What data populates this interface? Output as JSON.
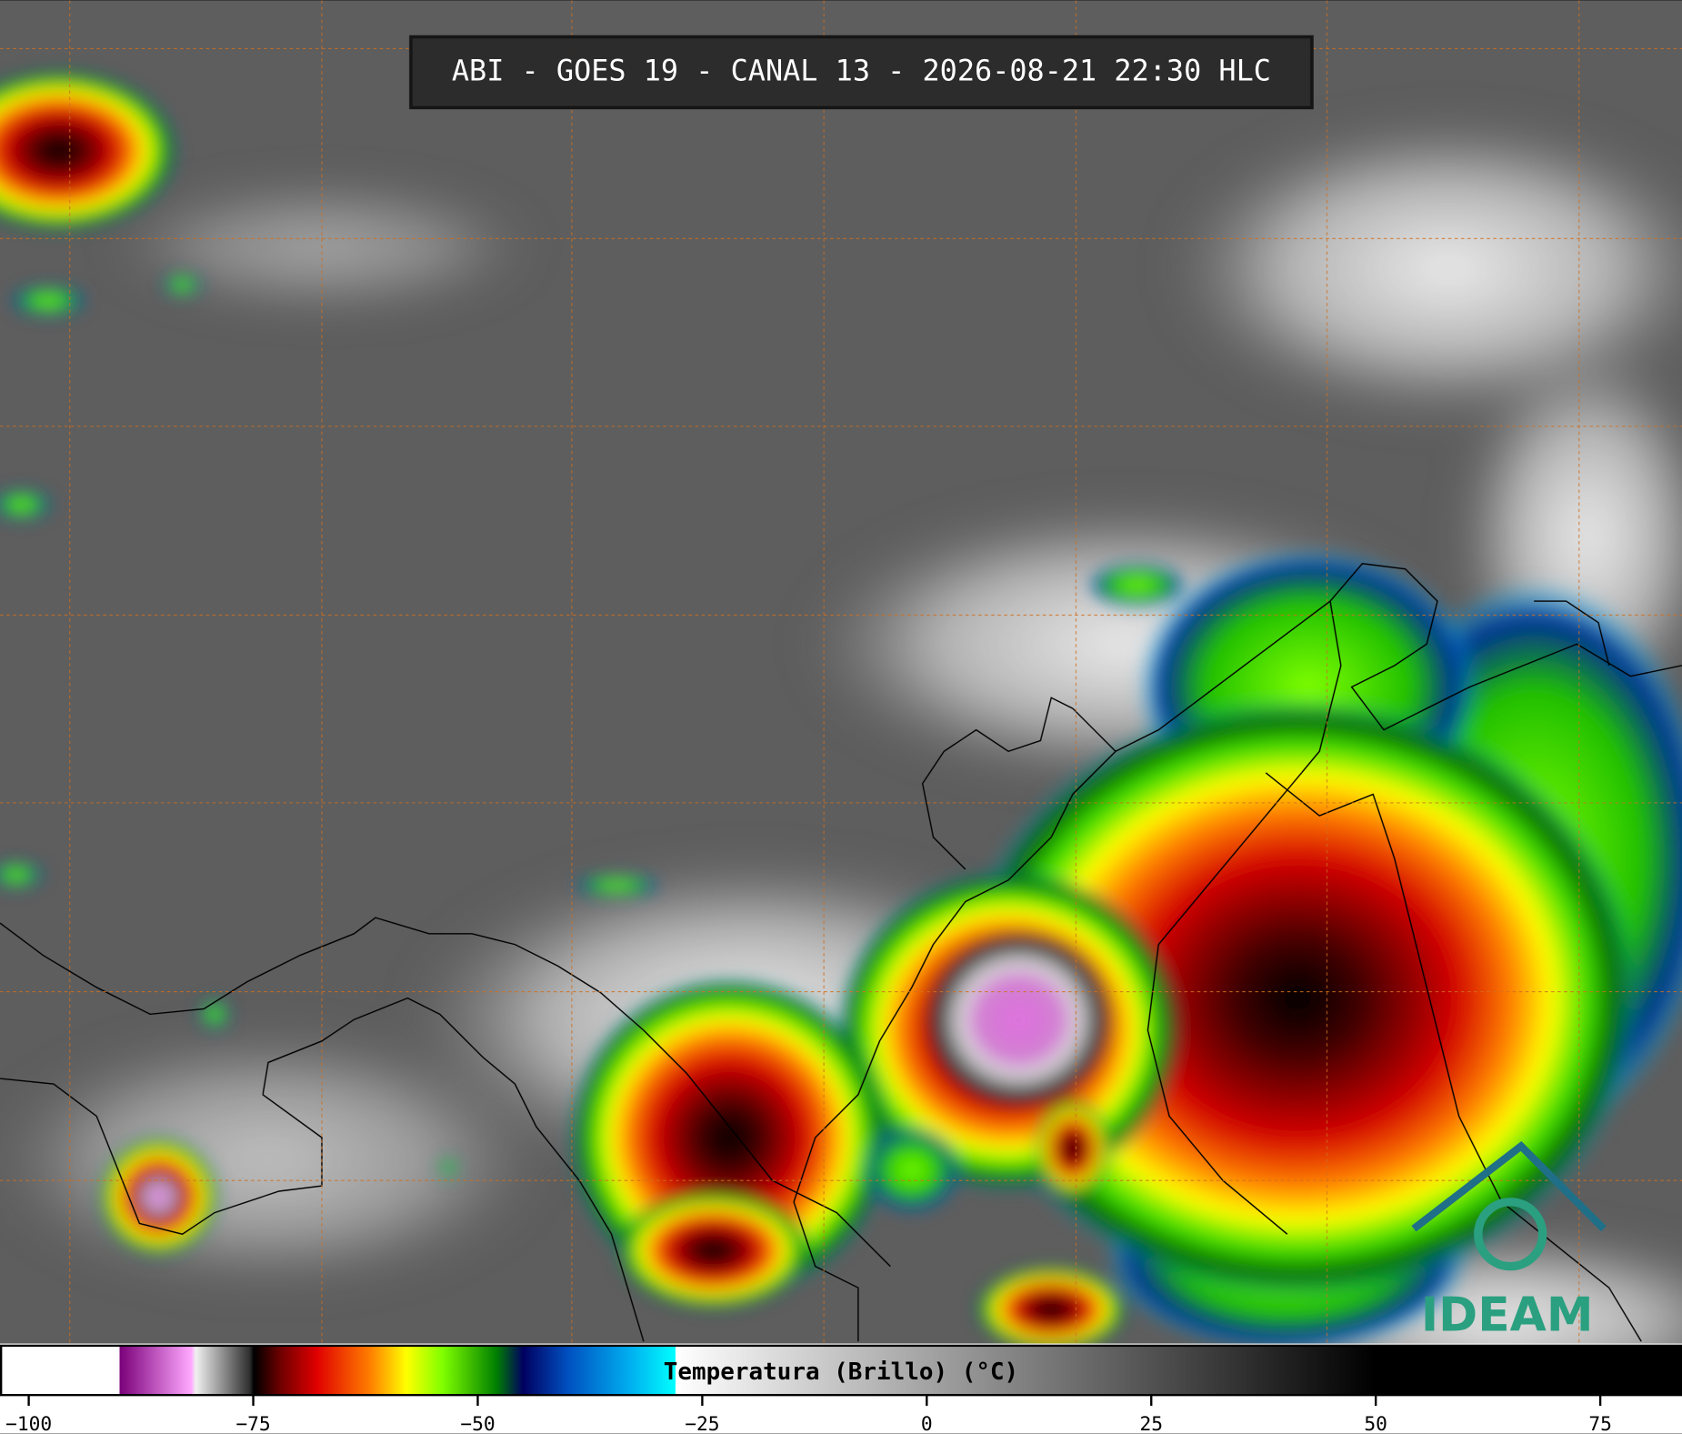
{
  "header": {
    "title": "ABI - GOES 19 - CANAL 13 - 2026-08-21 22:30 HLC"
  },
  "colorbar": {
    "label": "Temperatura (Brillo) (°C)",
    "lim": [
      -103.2,
      84.1
    ],
    "ticks": [
      {
        "value": -100,
        "label": "−100"
      },
      {
        "value": -75,
        "label": "−75"
      },
      {
        "value": -50,
        "label": "−50"
      },
      {
        "value": -25,
        "label": "−25"
      },
      0,
      25,
      50,
      75
    ],
    "color_scale": [
      {
        "value": -103.2,
        "color": "#ffffff"
      },
      {
        "value": -90,
        "color": "#ffffff"
      },
      {
        "value": -90,
        "color": "#7a007a"
      },
      {
        "value": -82,
        "color": "#ffa8ff"
      },
      {
        "value": -81.5,
        "color": "#f0f0f0"
      },
      {
        "value": -75.5,
        "color": "#303030"
      },
      {
        "value": -75,
        "color": "#000000"
      },
      {
        "value": -72,
        "color": "#700000"
      },
      {
        "value": -68,
        "color": "#e00000"
      },
      {
        "value": -62,
        "color": "#ff8000"
      },
      {
        "value": -58,
        "color": "#ffff00"
      },
      {
        "value": -54,
        "color": "#80ff00"
      },
      {
        "value": -48,
        "color": "#008000"
      },
      {
        "value": -45,
        "color": "#000060"
      },
      {
        "value": -40,
        "color": "#0050c0"
      },
      {
        "value": -33,
        "color": "#00b0f0"
      },
      {
        "value": -28,
        "color": "#00ffff"
      },
      {
        "value": -28,
        "color": "#ffffff"
      },
      {
        "value": 50,
        "color": "#000000"
      },
      {
        "value": 84.1,
        "color": "#000000"
      }
    ]
  },
  "logo": {
    "text": "IDEAM"
  }
}
